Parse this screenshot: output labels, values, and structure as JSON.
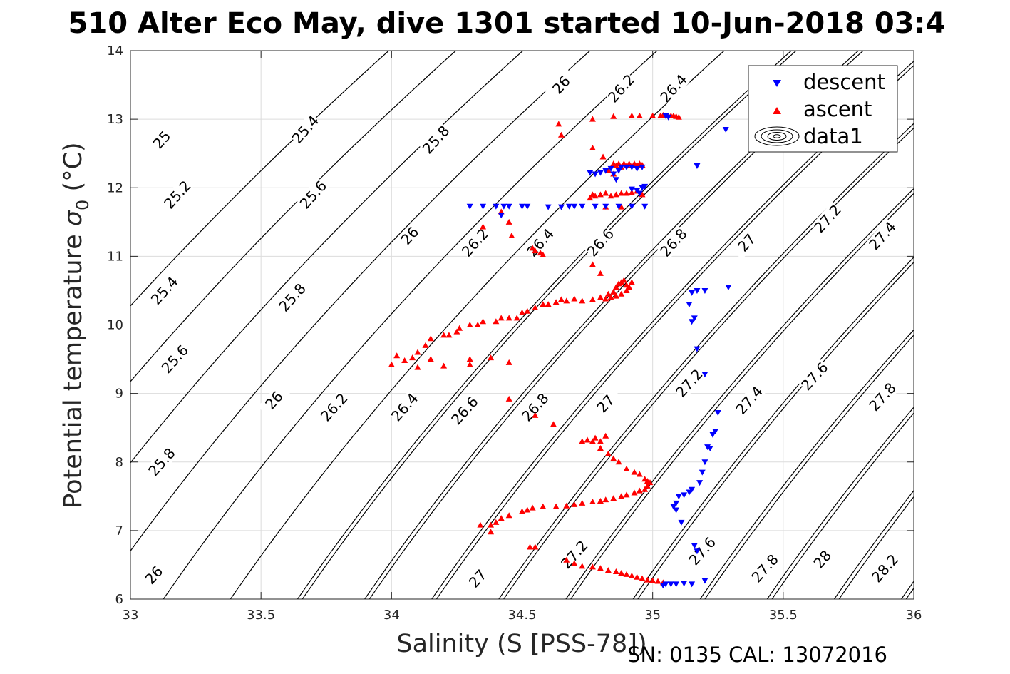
{
  "title": "510 Alter Eco May, dive 1301 started 10-Jun-2018 03:4",
  "footer": "SN: 0135  CAL: 13072016",
  "chart_data": {
    "type": "scatter",
    "xlabel": "Salinity (S [PSS-78])",
    "ylabel_main": "Potential temperature ",
    "ylabel_sigma": "σ",
    "ylabel_sub": "0",
    "ylabel_unit": " (°C)",
    "xlim": [
      33,
      36
    ],
    "ylim": [
      6,
      14
    ],
    "xticks": [
      "33",
      "33.5",
      "34",
      "34.5",
      "35",
      "35.5",
      "36"
    ],
    "yticks": [
      "6",
      "7",
      "8",
      "9",
      "10",
      "11",
      "12",
      "13",
      "14"
    ],
    "grid": true,
    "legend_position": "top-right",
    "legend": [
      {
        "label": "descent",
        "marker": "triangle-down",
        "color": "#0000ff"
      },
      {
        "label": "ascent",
        "marker": "triangle-up",
        "color": "#ff0000"
      },
      {
        "label": "data1",
        "marker": "contour",
        "color": "#000000"
      }
    ],
    "contour_levels": [
      25,
      25.2,
      25.4,
      25.6,
      25.8,
      26,
      26.2,
      26.4,
      26.6,
      26.8,
      27,
      27.2,
      27.4,
      27.6,
      27.8,
      28,
      28.2
    ],
    "contour_labels": [
      {
        "text": "25",
        "s": 33.12,
        "t": 12.7
      },
      {
        "text": "25.2",
        "s": 33.18,
        "t": 11.9
      },
      {
        "text": "25.4",
        "s": 33.13,
        "t": 10.5
      },
      {
        "text": "25.6",
        "s": 33.17,
        "t": 9.5
      },
      {
        "text": "25.8",
        "s": 33.12,
        "t": 8.0
      },
      {
        "text": "26",
        "s": 33.09,
        "t": 6.35
      },
      {
        "text": "25.4",
        "s": 33.67,
        "t": 12.85
      },
      {
        "text": "25.6",
        "s": 33.7,
        "t": 11.9
      },
      {
        "text": "25.8",
        "s": 33.62,
        "t": 10.4
      },
      {
        "text": "26",
        "s": 33.55,
        "t": 8.9
      },
      {
        "text": "26.2",
        "s": 33.78,
        "t": 8.8
      },
      {
        "text": "25.8",
        "s": 34.17,
        "t": 12.7
      },
      {
        "text": "26",
        "s": 34.07,
        "t": 11.3
      },
      {
        "text": "26.4",
        "s": 34.05,
        "t": 8.8
      },
      {
        "text": "26",
        "s": 34.65,
        "t": 13.5
      },
      {
        "text": "26.2",
        "s": 34.32,
        "t": 11.2
      },
      {
        "text": "26.6",
        "s": 34.28,
        "t": 8.75
      },
      {
        "text": "26.2",
        "s": 34.88,
        "t": 13.45
      },
      {
        "text": "26.4",
        "s": 34.57,
        "t": 11.2
      },
      {
        "text": "26.8",
        "s": 34.55,
        "t": 8.8
      },
      {
        "text": "27",
        "s": 34.33,
        "t": 6.3
      },
      {
        "text": "26.4",
        "s": 35.08,
        "t": 13.45
      },
      {
        "text": "26.6",
        "s": 34.8,
        "t": 11.2
      },
      {
        "text": "27",
        "s": 34.82,
        "t": 8.85
      },
      {
        "text": "27.2",
        "s": 34.7,
        "t": 6.65
      },
      {
        "text": "26.8",
        "s": 35.08,
        "t": 11.2
      },
      {
        "text": "27.2",
        "s": 35.14,
        "t": 9.15
      },
      {
        "text": "27.6",
        "s": 35.19,
        "t": 6.7
      },
      {
        "text": "27",
        "s": 35.36,
        "t": 11.2
      },
      {
        "text": "27.4",
        "s": 35.37,
        "t": 8.9
      },
      {
        "text": "27.8",
        "s": 35.43,
        "t": 6.45
      },
      {
        "text": "27.2",
        "s": 35.67,
        "t": 11.55
      },
      {
        "text": "27.6",
        "s": 35.62,
        "t": 9.25
      },
      {
        "text": "28",
        "s": 35.65,
        "t": 6.58
      },
      {
        "text": "27.4",
        "s": 35.88,
        "t": 11.3
      },
      {
        "text": "27.8",
        "s": 35.88,
        "t": 8.95
      },
      {
        "text": "28.2",
        "s": 35.89,
        "t": 6.45
      }
    ],
    "descent": [
      [
        34.3,
        11.73
      ],
      [
        34.35,
        11.73
      ],
      [
        34.4,
        11.73
      ],
      [
        34.43,
        11.73
      ],
      [
        34.45,
        11.73
      ],
      [
        34.5,
        11.73
      ],
      [
        34.52,
        11.73
      ],
      [
        34.6,
        11.72
      ],
      [
        34.65,
        11.72
      ],
      [
        34.68,
        11.73
      ],
      [
        34.7,
        11.73
      ],
      [
        34.73,
        11.73
      ],
      [
        34.78,
        11.73
      ],
      [
        34.82,
        11.73
      ],
      [
        34.87,
        11.73
      ],
      [
        34.92,
        11.73
      ],
      [
        34.97,
        11.73
      ],
      [
        34.42,
        11.6
      ],
      [
        34.76,
        12.22
      ],
      [
        34.78,
        12.2
      ],
      [
        34.8,
        12.22
      ],
      [
        34.82,
        12.25
      ],
      [
        34.84,
        12.28
      ],
      [
        34.85,
        12.2
      ],
      [
        34.87,
        12.25
      ],
      [
        34.88,
        12.3
      ],
      [
        34.9,
        12.3
      ],
      [
        34.92,
        12.3
      ],
      [
        34.94,
        12.28
      ],
      [
        34.96,
        12.3
      ],
      [
        34.86,
        12.12
      ],
      [
        34.92,
        11.98
      ],
      [
        34.94,
        11.96
      ],
      [
        34.96,
        12.0
      ],
      [
        34.97,
        12.02
      ],
      [
        34.95,
        11.92
      ],
      [
        35.05,
        13.05
      ],
      [
        35.06,
        13.03
      ],
      [
        35.17,
        12.32
      ],
      [
        35.28,
        12.85
      ],
      [
        35.15,
        10.47
      ],
      [
        35.17,
        10.5
      ],
      [
        35.2,
        10.5
      ],
      [
        35.29,
        10.55
      ],
      [
        35.14,
        10.3
      ],
      [
        35.15,
        10.05
      ],
      [
        35.16,
        10.1
      ],
      [
        35.17,
        9.65
      ],
      [
        35.2,
        9.28
      ],
      [
        35.25,
        8.72
      ],
      [
        35.24,
        8.45
      ],
      [
        35.23,
        8.4
      ],
      [
        35.22,
        8.2
      ],
      [
        35.21,
        8.22
      ],
      [
        35.2,
        8.0
      ],
      [
        35.19,
        7.85
      ],
      [
        35.18,
        7.7
      ],
      [
        35.15,
        7.6
      ],
      [
        35.14,
        7.56
      ],
      [
        35.12,
        7.52
      ],
      [
        35.1,
        7.5
      ],
      [
        35.09,
        7.4
      ],
      [
        35.08,
        7.35
      ],
      [
        35.09,
        7.3
      ],
      [
        35.11,
        7.12
      ],
      [
        35.16,
        6.78
      ],
      [
        35.17,
        6.7
      ],
      [
        35.05,
        6.22
      ],
      [
        35.07,
        6.22
      ],
      [
        35.09,
        6.22
      ],
      [
        35.12,
        6.23
      ],
      [
        35.15,
        6.22
      ],
      [
        35.2,
        6.27
      ],
      [
        35.04,
        6.2
      ]
    ],
    "ascent": [
      [
        34.64,
        12.93
      ],
      [
        34.65,
        12.77
      ],
      [
        34.77,
        13.0
      ],
      [
        34.85,
        13.04
      ],
      [
        34.92,
        13.05
      ],
      [
        34.95,
        13.05
      ],
      [
        35.0,
        13.05
      ],
      [
        35.03,
        13.05
      ],
      [
        35.04,
        13.06
      ],
      [
        35.05,
        13.05
      ],
      [
        35.06,
        13.05
      ],
      [
        35.07,
        13.05
      ],
      [
        35.08,
        13.05
      ],
      [
        35.09,
        13.04
      ],
      [
        35.1,
        13.03
      ],
      [
        34.77,
        12.58
      ],
      [
        34.81,
        12.45
      ],
      [
        34.85,
        12.35
      ],
      [
        34.86,
        12.32
      ],
      [
        34.87,
        12.35
      ],
      [
        34.88,
        12.3
      ],
      [
        34.89,
        12.35
      ],
      [
        34.9,
        12.32
      ],
      [
        34.91,
        12.35
      ],
      [
        34.92,
        12.32
      ],
      [
        34.93,
        12.35
      ],
      [
        34.94,
        12.33
      ],
      [
        34.95,
        12.35
      ],
      [
        34.96,
        12.33
      ],
      [
        34.83,
        12.25
      ],
      [
        34.85,
        12.2
      ],
      [
        34.77,
        11.9
      ],
      [
        34.78,
        11.88
      ],
      [
        34.8,
        11.9
      ],
      [
        34.82,
        11.92
      ],
      [
        34.84,
        11.88
      ],
      [
        34.86,
        11.9
      ],
      [
        34.88,
        11.92
      ],
      [
        34.9,
        11.92
      ],
      [
        34.92,
        11.93
      ],
      [
        34.94,
        11.95
      ],
      [
        34.96,
        11.9
      ],
      [
        34.76,
        11.85
      ],
      [
        34.82,
        11.72
      ],
      [
        34.88,
        11.72
      ],
      [
        34.35,
        11.43
      ],
      [
        34.42,
        11.65
      ],
      [
        34.45,
        11.5
      ],
      [
        34.46,
        11.3
      ],
      [
        34.54,
        11.12
      ],
      [
        34.55,
        11.08
      ],
      [
        34.57,
        11.05
      ],
      [
        34.58,
        11.02
      ],
      [
        34.77,
        10.88
      ],
      [
        34.8,
        10.75
      ],
      [
        34.83,
        10.45
      ],
      [
        34.85,
        10.48
      ],
      [
        34.86,
        10.55
      ],
      [
        34.87,
        10.6
      ],
      [
        34.88,
        10.62
      ],
      [
        34.89,
        10.65
      ],
      [
        34.9,
        10.58
      ],
      [
        34.91,
        10.55
      ],
      [
        34.92,
        10.62
      ],
      [
        34.9,
        10.5
      ],
      [
        34.88,
        10.45
      ],
      [
        34.86,
        10.42
      ],
      [
        34.84,
        10.4
      ],
      [
        34.82,
        10.38
      ],
      [
        34.8,
        10.4
      ],
      [
        34.77,
        10.37
      ],
      [
        34.73,
        10.35
      ],
      [
        34.7,
        10.38
      ],
      [
        34.67,
        10.35
      ],
      [
        34.65,
        10.37
      ],
      [
        34.63,
        10.33
      ],
      [
        34.6,
        10.3
      ],
      [
        34.58,
        10.3
      ],
      [
        34.55,
        10.25
      ],
      [
        34.52,
        10.2
      ],
      [
        34.5,
        10.18
      ],
      [
        34.48,
        10.1
      ],
      [
        34.45,
        10.1
      ],
      [
        34.42,
        10.1
      ],
      [
        34.4,
        10.05
      ],
      [
        34.35,
        10.05
      ],
      [
        34.33,
        10.0
      ],
      [
        34.3,
        10.0
      ],
      [
        34.26,
        9.95
      ],
      [
        34.25,
        9.9
      ],
      [
        34.22,
        9.85
      ],
      [
        34.2,
        9.85
      ],
      [
        34.15,
        9.8
      ],
      [
        34.13,
        9.7
      ],
      [
        34.1,
        9.6
      ],
      [
        34.08,
        9.52
      ],
      [
        34.05,
        9.48
      ],
      [
        34.02,
        9.55
      ],
      [
        34.0,
        9.42
      ],
      [
        34.1,
        9.38
      ],
      [
        34.15,
        9.5
      ],
      [
        34.2,
        9.4
      ],
      [
        34.3,
        9.42
      ],
      [
        34.3,
        9.5
      ],
      [
        34.38,
        9.52
      ],
      [
        34.45,
        9.45
      ],
      [
        34.45,
        8.92
      ],
      [
        34.55,
        8.68
      ],
      [
        34.62,
        8.55
      ],
      [
        34.73,
        8.3
      ],
      [
        34.75,
        8.32
      ],
      [
        34.77,
        8.3
      ],
      [
        34.78,
        8.35
      ],
      [
        34.8,
        8.3
      ],
      [
        34.82,
        8.38
      ],
      [
        34.8,
        8.2
      ],
      [
        34.83,
        8.12
      ],
      [
        34.85,
        8.05
      ],
      [
        34.87,
        8.0
      ],
      [
        34.9,
        7.9
      ],
      [
        34.93,
        7.85
      ],
      [
        34.95,
        7.82
      ],
      [
        34.97,
        7.75
      ],
      [
        34.98,
        7.72
      ],
      [
        34.99,
        7.7
      ],
      [
        34.98,
        7.65
      ],
      [
        34.97,
        7.6
      ],
      [
        34.95,
        7.58
      ],
      [
        34.93,
        7.55
      ],
      [
        34.9,
        7.52
      ],
      [
        34.88,
        7.5
      ],
      [
        34.85,
        7.47
      ],
      [
        34.82,
        7.45
      ],
      [
        34.8,
        7.43
      ],
      [
        34.77,
        7.42
      ],
      [
        34.73,
        7.4
      ],
      [
        34.7,
        7.38
      ],
      [
        34.67,
        7.36
      ],
      [
        34.63,
        7.35
      ],
      [
        34.58,
        7.35
      ],
      [
        34.54,
        7.33
      ],
      [
        34.52,
        7.3
      ],
      [
        34.5,
        7.28
      ],
      [
        34.45,
        7.22
      ],
      [
        34.42,
        7.18
      ],
      [
        34.4,
        7.12
      ],
      [
        34.38,
        7.08
      ],
      [
        34.34,
        7.08
      ],
      [
        34.38,
        6.98
      ],
      [
        34.53,
        6.76
      ],
      [
        34.55,
        6.76
      ],
      [
        34.67,
        6.57
      ],
      [
        34.7,
        6.52
      ],
      [
        34.73,
        6.48
      ],
      [
        34.77,
        6.47
      ],
      [
        34.8,
        6.45
      ],
      [
        34.83,
        6.42
      ],
      [
        34.86,
        6.4
      ],
      [
        34.88,
        6.38
      ],
      [
        34.9,
        6.36
      ],
      [
        34.92,
        6.34
      ],
      [
        34.94,
        6.32
      ],
      [
        34.96,
        6.3
      ],
      [
        34.98,
        6.28
      ],
      [
        35.0,
        6.27
      ],
      [
        35.02,
        6.26
      ],
      [
        35.04,
        6.24
      ]
    ]
  }
}
